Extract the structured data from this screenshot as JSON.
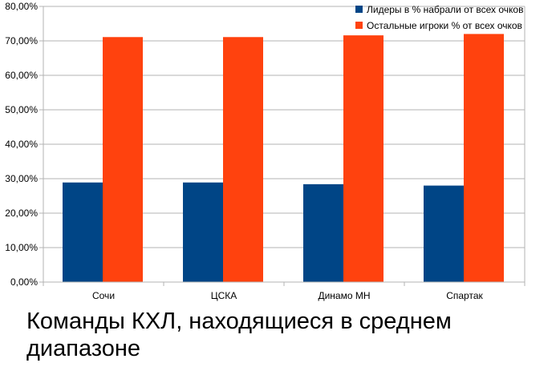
{
  "caption": "Команды КХЛ, находящиеся в среднем диапазоне",
  "chart_data": {
    "type": "bar",
    "categories": [
      "Сочи",
      "ЦСКА",
      "Динамо МН",
      "Спартак"
    ],
    "series": [
      {
        "name": "Лидеры в % набрали от всех очков",
        "color": "#004586",
        "values": [
          28.9,
          28.9,
          28.4,
          28.0
        ]
      },
      {
        "name": "Остальные игроки % от всех очков",
        "color": "#ff420e",
        "values": [
          71.1,
          71.1,
          71.6,
          72.0
        ]
      }
    ],
    "ylim": [
      0,
      80
    ],
    "yticks": [
      "0,00%",
      "10,00%",
      "20,00%",
      "30,00%",
      "40,00%",
      "50,00%",
      "60,00%",
      "70,00%",
      "80,00%"
    ],
    "grid": true,
    "legend": "top-right",
    "xlabel": "",
    "ylabel": ""
  }
}
